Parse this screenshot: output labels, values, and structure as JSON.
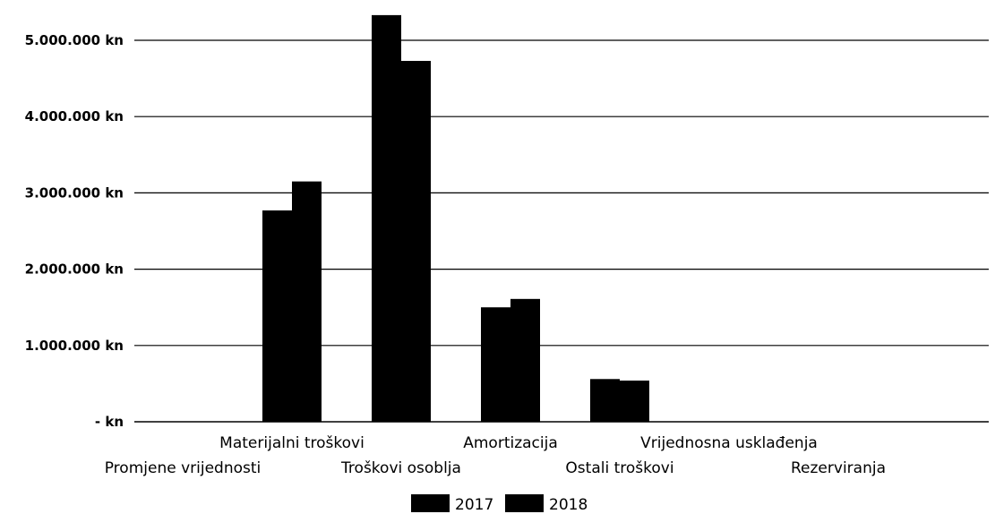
{
  "chart_data": {
    "type": "bar",
    "categories": [
      "Promjene vrijednosti",
      "Materijalni troškovi",
      "Troškovi osoblja",
      "Amortizacija",
      "Ostali troškovi",
      "Vrijednosna usklađenja",
      "Rezerviranja"
    ],
    "series": [
      {
        "name": "2017",
        "values": [
          0,
          2770000,
          5330000,
          1500000,
          560000,
          0,
          0
        ],
        "color": "#000000"
      },
      {
        "name": "2018",
        "values": [
          0,
          3150000,
          4730000,
          1610000,
          540000,
          0,
          0
        ],
        "color": "#000000"
      }
    ],
    "y_ticks": [
      {
        "value": 0,
        "label": "- kn"
      },
      {
        "value": 1000000,
        "label": "1.000.000 kn"
      },
      {
        "value": 2000000,
        "label": "2.000.000 kn"
      },
      {
        "value": 3000000,
        "label": "3.000.000 kn"
      },
      {
        "value": 4000000,
        "label": "4.000.000 kn"
      },
      {
        "value": 5000000,
        "label": "5.000.000 kn"
      }
    ],
    "ylim": [
      0,
      5000000
    ],
    "grid": true,
    "legend_position": "bottom"
  }
}
